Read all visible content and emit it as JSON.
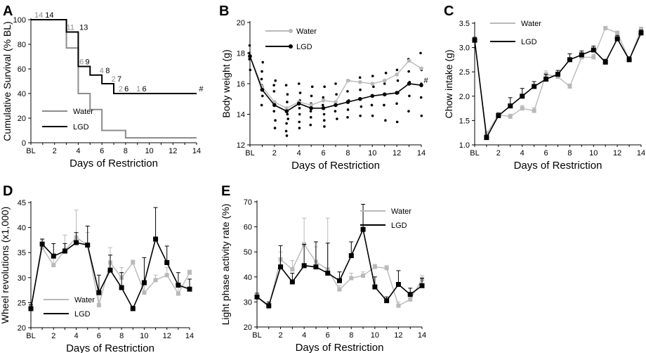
{
  "colors": {
    "water": "#8c8c8c",
    "water_light": "#b9b9b9",
    "lgd": "#000000",
    "grid": "#000000"
  },
  "chart_data": [
    {
      "id": "A",
      "panel_label": "A",
      "type": "step",
      "title": "",
      "xlabel": "Days of Restriction",
      "ylabel": "Cumulative Survival (% BL)",
      "x_ticks": [
        "BL",
        "2",
        "4",
        "6",
        "8",
        "10",
        "12",
        "14"
      ],
      "x_tick_values": [
        0,
        2,
        4,
        6,
        8,
        10,
        12,
        14
      ],
      "xlim": [
        0,
        14
      ],
      "ylim": [
        0,
        100
      ],
      "y_ticks": [
        0,
        20,
        40,
        60,
        80,
        100
      ],
      "legend": [
        "Water",
        "LGD"
      ],
      "series": [
        {
          "name": "Water",
          "points": [
            [
              0,
              100
            ],
            [
              3,
              100
            ],
            [
              3,
              77
            ],
            [
              4,
              77
            ],
            [
              4,
              40
            ],
            [
              5,
              40
            ],
            [
              5,
              27
            ],
            [
              6,
              27
            ],
            [
              6,
              10
            ],
            [
              8,
              10
            ],
            [
              8,
              4
            ],
            [
              14,
              4
            ]
          ]
        },
        {
          "name": "LGD",
          "points": [
            [
              0,
              100
            ],
            [
              3,
              100
            ],
            [
              3,
              90
            ],
            [
              4,
              90
            ],
            [
              4,
              62
            ],
            [
              5,
              62
            ],
            [
              5,
              55
            ],
            [
              6,
              55
            ],
            [
              6,
              48
            ],
            [
              7,
              48
            ],
            [
              7,
              40
            ],
            [
              14,
              40
            ]
          ]
        }
      ],
      "annotations": [
        {
          "series": "Water",
          "text": "14",
          "x": 0.3,
          "y": 100
        },
        {
          "series": "LGD",
          "text": "14",
          "x": 1.2,
          "y": 100
        },
        {
          "series": "Water",
          "text": "11",
          "x": 3.0,
          "y": 90
        },
        {
          "series": "LGD",
          "text": "13",
          "x": 4.1,
          "y": 90
        },
        {
          "series": "Water",
          "text": "6",
          "x": 4.1,
          "y": 62
        },
        {
          "series": "LGD",
          "text": "9",
          "x": 4.6,
          "y": 62
        },
        {
          "series": "Water",
          "text": "4",
          "x": 5.8,
          "y": 55
        },
        {
          "series": "LGD",
          "text": "8",
          "x": 6.3,
          "y": 55
        },
        {
          "series": "Water",
          "text": "2",
          "x": 6.8,
          "y": 48
        },
        {
          "series": "LGD",
          "text": "7",
          "x": 7.3,
          "y": 48
        },
        {
          "series": "Water",
          "text": "2",
          "x": 7.4,
          "y": 40
        },
        {
          "series": "LGD",
          "text": "6",
          "x": 7.9,
          "y": 40
        },
        {
          "series": "Water",
          "text": "1",
          "x": 8.9,
          "y": 40
        },
        {
          "series": "LGD",
          "text": "6",
          "x": 9.4,
          "y": 40
        },
        {
          "series": "LGD",
          "text": "#",
          "x": 14.2,
          "y": 40
        }
      ]
    },
    {
      "id": "B",
      "panel_label": "B",
      "type": "line",
      "title": "",
      "xlabel": "Days of Restriction",
      "ylabel": "Body weight (g)",
      "x_ticks": [
        "BL",
        "2",
        "4",
        "6",
        "8",
        "10",
        "12",
        "14"
      ],
      "x_tick_values": [
        0,
        2,
        4,
        6,
        8,
        10,
        12,
        14
      ],
      "xlim": [
        0,
        14
      ],
      "ylim": [
        12,
        20
      ],
      "y_ticks": [
        12,
        14,
        16,
        18,
        20
      ],
      "legend": [
        "Water",
        "LGD"
      ],
      "series": [
        {
          "name": "Water",
          "x": [
            0,
            1,
            2,
            3,
            4,
            5,
            6,
            7,
            8,
            9,
            10,
            11,
            12,
            13,
            14
          ],
          "values": [
            17.8,
            15.8,
            14.8,
            14.4,
            14.8,
            14.6,
            14.9,
            14.8,
            16.2,
            16.1,
            16.0,
            16.2,
            16.6,
            17.5,
            17.0
          ]
        },
        {
          "name": "LGD",
          "x": [
            0,
            1,
            2,
            3,
            4,
            5,
            6,
            7,
            8,
            9,
            10,
            11,
            12,
            13,
            14
          ],
          "values": [
            17.8,
            15.6,
            14.6,
            14.2,
            14.7,
            14.4,
            14.4,
            14.6,
            14.8,
            15.0,
            15.2,
            15.3,
            15.4,
            16.0,
            15.9
          ]
        }
      ],
      "individual_points": [
        [
          0,
          18.5
        ],
        [
          0,
          17.6
        ],
        [
          0,
          16.9
        ],
        [
          0,
          18.0
        ],
        [
          1,
          16.8
        ],
        [
          1,
          15.9
        ],
        [
          1,
          15.2
        ],
        [
          1,
          14.6
        ],
        [
          1,
          16.3
        ],
        [
          1,
          17.4
        ],
        [
          2,
          16.2
        ],
        [
          2,
          15.5
        ],
        [
          2,
          14.8
        ],
        [
          2,
          14.2
        ],
        [
          2,
          13.6
        ],
        [
          2,
          13.1
        ],
        [
          2,
          15.9
        ],
        [
          3,
          15.9
        ],
        [
          3,
          15.3
        ],
        [
          3,
          14.8
        ],
        [
          3,
          14.0
        ],
        [
          3,
          13.4
        ],
        [
          3,
          12.9
        ],
        [
          3,
          12.6
        ],
        [
          3,
          13.7
        ],
        [
          4,
          16.0
        ],
        [
          4,
          15.4
        ],
        [
          4,
          14.9
        ],
        [
          4,
          14.4
        ],
        [
          4,
          14.0
        ],
        [
          4,
          13.5
        ],
        [
          4,
          13.1
        ],
        [
          5,
          15.8
        ],
        [
          5,
          15.2
        ],
        [
          5,
          14.7
        ],
        [
          5,
          14.2
        ],
        [
          5,
          13.8
        ],
        [
          5,
          13.3
        ],
        [
          6,
          15.8
        ],
        [
          6,
          15.1
        ],
        [
          6,
          14.6
        ],
        [
          6,
          14.0
        ],
        [
          6,
          13.6
        ],
        [
          6,
          13.2
        ],
        [
          7,
          16.0
        ],
        [
          7,
          15.3
        ],
        [
          7,
          14.7
        ],
        [
          7,
          14.2
        ],
        [
          7,
          13.7
        ],
        [
          8,
          16.2
        ],
        [
          8,
          15.5
        ],
        [
          8,
          14.9
        ],
        [
          8,
          14.3
        ],
        [
          8,
          13.8
        ],
        [
          9,
          16.4
        ],
        [
          9,
          15.6
        ],
        [
          9,
          15.0
        ],
        [
          9,
          14.5
        ],
        [
          9,
          13.9
        ],
        [
          10,
          16.5
        ],
        [
          10,
          15.8
        ],
        [
          10,
          15.2
        ],
        [
          10,
          14.6
        ],
        [
          10,
          13.9
        ],
        [
          11,
          16.7
        ],
        [
          11,
          16.0
        ],
        [
          11,
          15.3
        ],
        [
          11,
          14.6
        ],
        [
          11,
          13.6
        ],
        [
          12,
          16.9
        ],
        [
          12,
          16.2
        ],
        [
          12,
          15.4
        ],
        [
          12,
          14.7
        ],
        [
          12,
          13.5
        ],
        [
          13,
          17.6
        ],
        [
          13,
          16.8
        ],
        [
          13,
          16.1
        ],
        [
          13,
          15.2
        ],
        [
          13,
          14.2
        ],
        [
          14,
          18.0
        ],
        [
          14,
          16.9
        ],
        [
          14,
          16.0
        ],
        [
          14,
          15.1
        ],
        [
          14,
          13.9
        ]
      ],
      "annotations": [
        {
          "text": "#",
          "x": 14.2,
          "y": 15.9
        }
      ]
    },
    {
      "id": "C",
      "panel_label": "C",
      "type": "line",
      "title": "",
      "xlabel": "Days of Restriction",
      "ylabel": "Chow intake (g)",
      "x_ticks": [
        "BL",
        "2",
        "4",
        "6",
        "8",
        "10",
        "12",
        "14"
      ],
      "x_tick_values": [
        0,
        2,
        4,
        6,
        8,
        10,
        12,
        14
      ],
      "xlim": [
        0,
        14
      ],
      "ylim": [
        1.0,
        3.5
      ],
      "y_ticks": [
        "1.0",
        "1.5",
        "2.0",
        "2.5",
        "3.0",
        "3.5"
      ],
      "legend": [
        "Water",
        "LGD"
      ],
      "series": [
        {
          "name": "Water",
          "x": [
            0,
            1,
            2,
            3,
            4,
            5,
            6,
            7,
            8,
            9,
            10,
            11,
            12,
            13,
            14
          ],
          "values": [
            3.15,
            1.22,
            1.62,
            1.58,
            1.75,
            1.7,
            2.45,
            2.4,
            2.2,
            2.8,
            2.8,
            3.4,
            3.3,
            2.75,
            3.38
          ],
          "errors": [
            0.05,
            0.06,
            0.05,
            0.05,
            0.06,
            0.06,
            0.07,
            0.06,
            0.05,
            0.05,
            0.06,
            0.03,
            0.04,
            0.05,
            0.04
          ]
        },
        {
          "name": "LGD",
          "x": [
            0,
            1,
            2,
            3,
            4,
            5,
            6,
            7,
            8,
            9,
            10,
            11,
            12,
            13,
            14
          ],
          "values": [
            3.15,
            1.15,
            1.6,
            1.8,
            2.0,
            2.2,
            2.35,
            2.45,
            2.75,
            2.85,
            2.95,
            2.7,
            3.18,
            2.75,
            3.3
          ],
          "errors": [
            0.06,
            0.05,
            0.05,
            0.17,
            0.16,
            0.1,
            0.1,
            0.08,
            0.12,
            0.08,
            0.08,
            0.06,
            0.07,
            0.06,
            0.06
          ]
        }
      ]
    },
    {
      "id": "D",
      "panel_label": "D",
      "type": "line",
      "title": "",
      "xlabel": "Days of Restriction",
      "ylabel": "Wheel revolutions (x1,000)",
      "x_ticks": [
        "BL",
        "2",
        "4",
        "6",
        "8",
        "10",
        "12",
        "14"
      ],
      "x_tick_values": [
        0,
        2,
        4,
        6,
        8,
        10,
        12,
        14
      ],
      "xlim": [
        0,
        14
      ],
      "ylim": [
        20,
        45
      ],
      "y_ticks": [
        20,
        25,
        30,
        35,
        40,
        45
      ],
      "legend": [
        "Water",
        "LGD"
      ],
      "series": [
        {
          "name": "Water",
          "x": [
            0,
            1,
            2,
            3,
            4,
            5,
            6,
            7,
            8,
            9,
            10,
            11,
            12,
            13,
            14
          ],
          "values": [
            24.0,
            36.0,
            32.5,
            35.5,
            38.0,
            36.5,
            24.5,
            33.0,
            30.0,
            33.0,
            27.0,
            29.5,
            30.5,
            26.8,
            31.0
          ],
          "errors": [
            0.5,
            1.5,
            2.0,
            3.0,
            5.5,
            2.5,
            2.5,
            3.0,
            2.0,
            0.5,
            1.5,
            1.0,
            1.5,
            1.5,
            0.5
          ]
        },
        {
          "name": "LGD",
          "x": [
            0,
            1,
            2,
            3,
            4,
            5,
            6,
            7,
            8,
            9,
            10,
            11,
            12,
            13,
            14
          ],
          "values": [
            23.8,
            36.7,
            34.3,
            35.3,
            37.0,
            36.5,
            27.0,
            31.5,
            28.0,
            23.8,
            29.0,
            37.7,
            33.0,
            28.5,
            27.7
          ],
          "errors": [
            0.8,
            1.0,
            2.5,
            1.5,
            2.0,
            3.8,
            3.5,
            3.0,
            3.0,
            0.5,
            5.0,
            6.3,
            3.3,
            2.5,
            2.0
          ]
        }
      ]
    },
    {
      "id": "E",
      "panel_label": "E",
      "type": "line",
      "title": "",
      "xlabel": "Days of Restriction",
      "ylabel": "Light phase activity rate (%)",
      "x_ticks": [
        "BL",
        "2",
        "4",
        "6",
        "8",
        "10",
        "12",
        "14"
      ],
      "x_tick_values": [
        0,
        2,
        4,
        6,
        8,
        10,
        12,
        14
      ],
      "xlim": [
        0,
        14
      ],
      "ylim": [
        20,
        70
      ],
      "y_ticks": [
        20,
        30,
        40,
        50,
        60,
        70
      ],
      "legend": [
        "Water",
        "LGD"
      ],
      "series": [
        {
          "name": "Water",
          "x": [
            0,
            1,
            2,
            3,
            4,
            5,
            6,
            7,
            8,
            9,
            10,
            11,
            12,
            13,
            14
          ],
          "values": [
            32.0,
            28.0,
            47.0,
            43.0,
            53.0,
            46.0,
            43.0,
            35.0,
            39.5,
            40.5,
            44.0,
            43.5,
            28.5,
            31.0,
            39.0
          ],
          "errors": [
            1.5,
            1.5,
            3.0,
            3.5,
            10.5,
            6.0,
            20.5,
            1.5,
            2.0,
            1.5,
            1.0,
            1.0,
            1.5,
            2.0,
            1.5
          ]
        },
        {
          "name": "LGD",
          "x": [
            0,
            1,
            2,
            3,
            4,
            5,
            6,
            7,
            8,
            9,
            10,
            11,
            12,
            13,
            14
          ],
          "values": [
            32.0,
            28.5,
            44.0,
            38.0,
            44.5,
            44.0,
            41.5,
            38.5,
            48.5,
            59.0,
            36.0,
            30.5,
            37.0,
            33.0,
            36.5
          ],
          "errors": [
            1.5,
            1.5,
            8.5,
            3.5,
            8.5,
            10.0,
            12.0,
            3.5,
            5.5,
            10.0,
            4.0,
            1.5,
            5.5,
            2.5,
            3.0
          ]
        }
      ]
    }
  ]
}
